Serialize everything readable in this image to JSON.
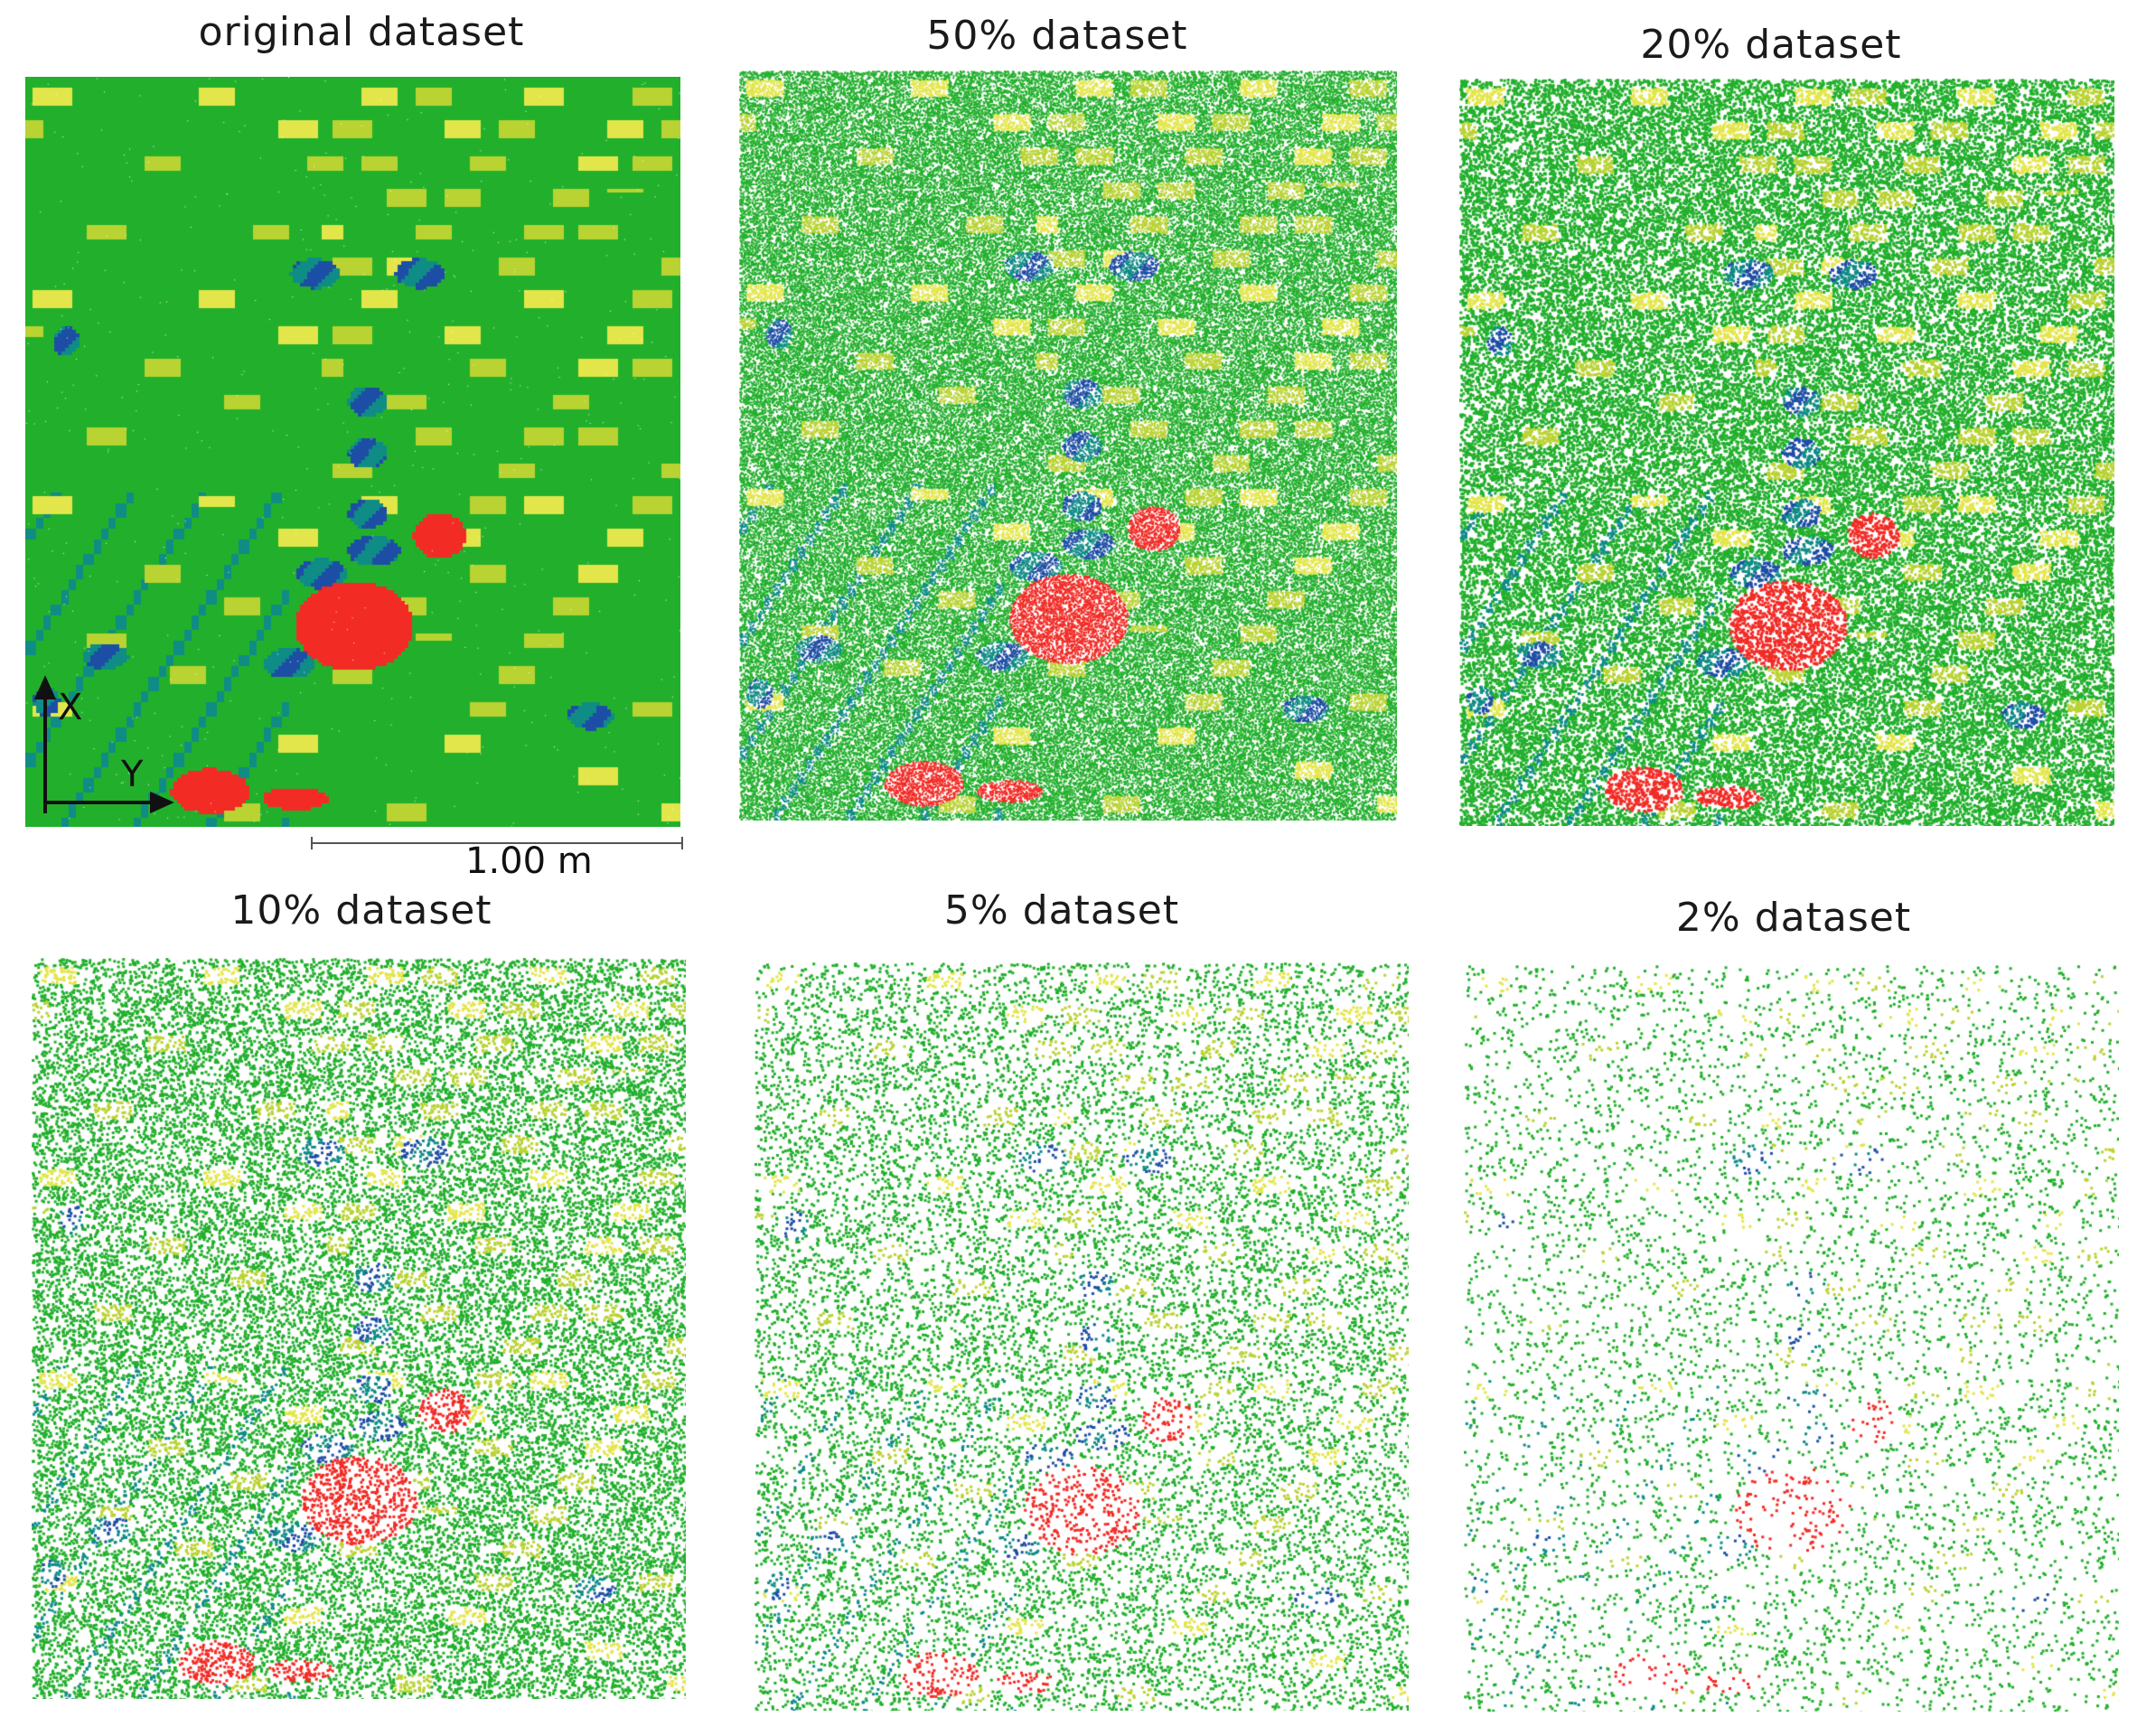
{
  "panels": [
    {
      "title": "original dataset",
      "density": 1.0
    },
    {
      "title": "50% dataset",
      "density": 0.5
    },
    {
      "title": "20% dataset",
      "density": 0.2
    },
    {
      "title": "10% dataset",
      "density": 0.1
    },
    {
      "title": "5% dataset",
      "density": 0.05
    },
    {
      "title": "2% dataset",
      "density": 0.02
    }
  ],
  "axes": {
    "x_label": "X",
    "y_label": "Y"
  },
  "scale_bar": {
    "label": "1.00  m"
  },
  "colors": {
    "green": "#22b02c",
    "yellow_green": "#b9d332",
    "yellow": "#e3e64a",
    "teal": "#0f8c86",
    "blue": "#1d4ea5",
    "red": "#f22b25",
    "white": "#ffffff"
  }
}
